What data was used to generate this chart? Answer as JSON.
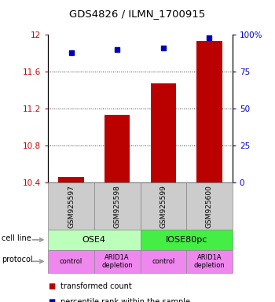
{
  "title": "GDS4826 / ILMN_1700915",
  "samples": [
    "GSM925597",
    "GSM925598",
    "GSM925599",
    "GSM925600"
  ],
  "transformed_counts": [
    10.46,
    11.13,
    11.47,
    11.93
  ],
  "percentile_ranks": [
    88,
    90,
    91,
    98
  ],
  "ylim_left": [
    10.4,
    12.0
  ],
  "ylim_right": [
    0,
    100
  ],
  "yticks_left": [
    10.4,
    10.8,
    11.2,
    11.6,
    12.0
  ],
  "yticks_right": [
    0,
    25,
    50,
    75,
    100
  ],
  "ytick_labels_left": [
    "10.4",
    "10.8",
    "11.2",
    "11.6",
    "12"
  ],
  "ytick_labels_right": [
    "0",
    "25",
    "50",
    "75",
    "100%"
  ],
  "bar_color": "#bb0000",
  "dot_color": "#0000bb",
  "bar_bottom": 10.4,
  "cell_line_colors": [
    "#bbffbb",
    "#44ee44"
  ],
  "protocols": [
    "control",
    "ARID1A\ndepletion",
    "control",
    "ARID1A\ndepletion"
  ],
  "protocol_color": "#ee88ee",
  "sample_box_color": "#cccccc",
  "legend_red_label": "transformed count",
  "legend_blue_label": "percentile rank within the sample",
  "ylabel_left_color": "#cc0000",
  "ylabel_right_color": "#0000cc",
  "grid_color": "#333333"
}
